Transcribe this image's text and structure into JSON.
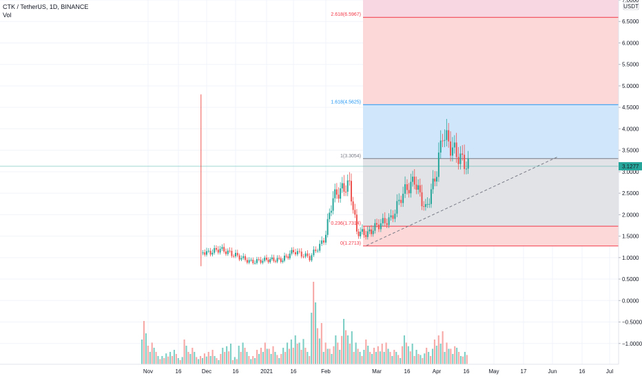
{
  "legend": {
    "title": "CTK / TetherUS, 1D, BINANCE",
    "vol": "Vol"
  },
  "chart_data": {
    "type": "candlestick",
    "symbol": "CTK / TetherUS",
    "interval": "1D",
    "exchange": "BINANCE",
    "currency_label": "USDT",
    "last_price": "3.1277",
    "ylim": [
      -1.5,
      7.0
    ],
    "y_ticks": [
      "7.0000",
      "6.5000",
      "6.0000",
      "5.5000",
      "5.0000",
      "4.5000",
      "4.0000",
      "3.5000",
      "3.0000",
      "2.5000",
      "2.0000",
      "1.5000",
      "1.0000",
      "0.5000",
      "0.0000",
      "−0.5000",
      "−1.0000"
    ],
    "x_ticks": [
      "Nov",
      "16",
      "Dec",
      "16",
      "2021",
      "16",
      "Feb",
      "Mar",
      "16",
      "Apr",
      "16",
      "May",
      "17",
      "Jun",
      "16",
      "Jul"
    ],
    "fib_levels": [
      {
        "label": "0(1.2713)",
        "value": 1.2713,
        "color": "#f23645"
      },
      {
        "label": "0.236(1.7314)",
        "value": 1.7314,
        "color": "#f23645"
      },
      {
        "label": "1(3.3054)",
        "value": 3.3054,
        "color": "#787b86"
      },
      {
        "label": "1.618(4.5625)",
        "value": 4.5625,
        "color": "#2196f3"
      },
      {
        "label": "2.618(6.5967)",
        "value": 6.5967,
        "color": "#f23645"
      }
    ],
    "colors": {
      "up": "#26a69a",
      "down": "#ef5350",
      "fib_red": "#f23645",
      "fib_blue": "#2196f3",
      "price_line": "#26a69a"
    },
    "price_series": [
      {
        "date": "Oct 30",
        "high": 4.8,
        "low": 0.8,
        "close": 1.1
      },
      {
        "date": "Nov 8",
        "value": 0.8
      },
      {
        "date": "Nov 16",
        "value": 1.1
      },
      {
        "date": "Nov 22",
        "value": 1.35
      },
      {
        "date": "Dec 1",
        "value": 1.1
      },
      {
        "date": "Dec 8",
        "value": 1.2
      },
      {
        "date": "Dec 16",
        "value": 1.05
      },
      {
        "date": "Dec 24",
        "value": 0.9
      },
      {
        "date": "Jan 1",
        "value": 0.95
      },
      {
        "date": "Jan 10",
        "value": 0.95
      },
      {
        "date": "Jan 16",
        "value": 1.15
      },
      {
        "date": "Jan 24",
        "value": 1.0
      },
      {
        "date": "Jan 31",
        "value": 1.4
      },
      {
        "date": "Feb 5",
        "value": 2.4
      },
      {
        "date": "Feb 10",
        "value": 2.6
      },
      {
        "date": "Feb 14",
        "value": 2.7
      },
      {
        "date": "Feb 18",
        "value": 1.6
      },
      {
        "date": "Feb 24",
        "value": 1.55
      },
      {
        "date": "Mar 1",
        "value": 1.75
      },
      {
        "date": "Mar 8",
        "value": 1.9
      },
      {
        "date": "Mar 14",
        "value": 2.5
      },
      {
        "date": "Mar 20",
        "value": 2.8
      },
      {
        "date": "Mar 26",
        "value": 2.1
      },
      {
        "date": "Apr 1",
        "value": 3.0
      },
      {
        "date": "Apr 4",
        "value": 3.9
      },
      {
        "date": "Apr 8",
        "value": 3.6
      },
      {
        "date": "Apr 13",
        "value": 3.3
      },
      {
        "date": "Apr 17",
        "value": 3.1277
      }
    ],
    "volume_relative": [
      0.6,
      0.3,
      0.2,
      0.1,
      0.15,
      0.2,
      0.1,
      0.3,
      0.2,
      0.1,
      0.15,
      0.2,
      0.1,
      0.2,
      0.25,
      0.1,
      0.3,
      0.2,
      0.1,
      0.2,
      0.3,
      0.25,
      0.15,
      0.2,
      0.3,
      0.4,
      0.35,
      0.2,
      1.0,
      0.5,
      0.3,
      0.25,
      0.35,
      0.55,
      0.4,
      0.3,
      0.2,
      0.3,
      0.2,
      0.25,
      0.3,
      0.2,
      0.15,
      0.35,
      0.25,
      0.2,
      0.15,
      0.2,
      0.3,
      0.4,
      0.3,
      0.25,
      0.2,
      0.15
    ]
  }
}
